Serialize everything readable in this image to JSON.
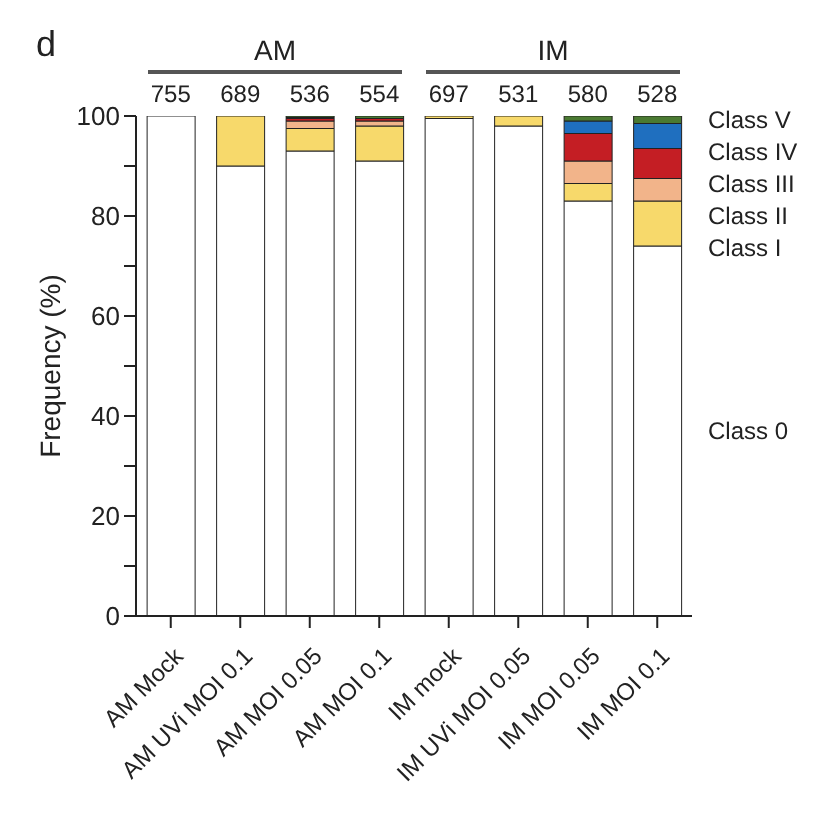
{
  "chart_data": {
    "type": "bar",
    "stacked": true,
    "title": "d",
    "ylabel": "Frequency (%)",
    "categories": [
      "AM Mock",
      "AM UVi MOI 0.1",
      "AM MOI 0.05",
      "AM MOI 0.1",
      "IM mock",
      "IM UVi MOI 0.05",
      "IM MOI 0.05",
      "IM MOI 0.1"
    ],
    "series": [
      {
        "name": "Class 0",
        "color": "#ffffff",
        "values": [
          100,
          90,
          93,
          91,
          99.5,
          98,
          83,
          74
        ]
      },
      {
        "name": "Class I",
        "color": "#f7d96b",
        "values": [
          0,
          10,
          4.5,
          7,
          0.5,
          2,
          3.5,
          9
        ]
      },
      {
        "name": "Class II",
        "color": "#f2b48a",
        "values": [
          0,
          0,
          1.5,
          1,
          0,
          0,
          4.5,
          4.5
        ]
      },
      {
        "name": "Class III",
        "color": "#c41e24",
        "values": [
          0,
          0,
          0.5,
          0.5,
          0,
          0,
          5.5,
          6
        ]
      },
      {
        "name": "Class IV",
        "color": "#1f6fbf",
        "values": [
          0,
          0,
          0.2,
          0,
          0,
          0,
          2.5,
          5
        ]
      },
      {
        "name": "Class V",
        "color": "#4a7a32",
        "values": [
          0,
          0,
          0.3,
          0.5,
          0,
          0,
          1,
          1.5
        ]
      }
    ],
    "ylim": [
      0,
      100
    ],
    "yticks": [
      0,
      {
        "value": 10,
        "label": null
      },
      20,
      {
        "value": 30,
        "label": null
      },
      40,
      {
        "value": 50,
        "label": null
      },
      60,
      {
        "value": 70,
        "label": null
      },
      80,
      {
        "value": 90,
        "label": null
      },
      100
    ],
    "legend": "right",
    "annotations": [
      "AM",
      "IM",
      {
        "text": "755",
        "x": "AM Mock",
        "y": 100
      },
      {
        "text": "689",
        "x": "AM UVi MOI 0.1",
        "y": 100
      },
      {
        "text": "536",
        "x": "AM MOI 0.05",
        "y": 100
      },
      {
        "text": "554",
        "x": "AM MOI 0.1",
        "y": 100
      },
      {
        "text": "697",
        "x": "IM mock",
        "y": 100
      },
      {
        "text": "531",
        "x": "IM UVi MOI 0.05",
        "y": 100
      },
      {
        "text": "580",
        "x": "IM MOI 0.05",
        "y": 100
      },
      {
        "text": "528",
        "x": "IM MOI 0.1",
        "y": 100
      }
    ]
  }
}
